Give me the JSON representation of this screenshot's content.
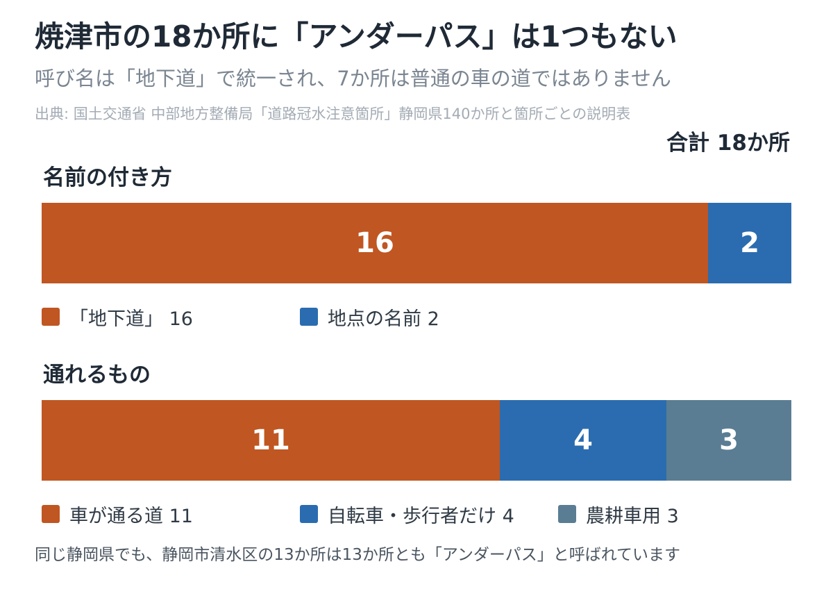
{
  "header": {
    "title": "焼津市の18か所に「アンダーパス」は1つもない",
    "subtitle": "呼び名は「地下道」で統一され、7か所は普通の車の道ではありません",
    "source": "出典: 国土交通省 中部地方整備局「道路冠水注意箇所」静岡県140か所と箇所ごとの説明表",
    "total": "合計 18か所"
  },
  "footnote": "同じ静岡県でも、静岡市清水区の13か所は13か所とも「アンダーパス」と呼ばれています",
  "colors": {
    "orange": "#c05621",
    "blue": "#2b6cb0",
    "slate": "#5a7d93"
  },
  "chart_data": [
    {
      "type": "bar",
      "orientation": "horizontal-stacked",
      "title": "名前の付き方",
      "total": 18,
      "segments": [
        {
          "label": "「地下道」 16",
          "value": 16,
          "display": "16",
          "color": "#c05621"
        },
        {
          "label": "地点の名前 2",
          "value": 2,
          "display": "2",
          "color": "#2b6cb0"
        }
      ]
    },
    {
      "type": "bar",
      "orientation": "horizontal-stacked",
      "title": "通れるもの",
      "total": 18,
      "segments": [
        {
          "label": "車が通る道 11",
          "value": 11,
          "display": "11",
          "color": "#c05621"
        },
        {
          "label": "自転車・歩行者だけ 4",
          "value": 4,
          "display": "4",
          "color": "#2b6cb0"
        },
        {
          "label": "農耕車用 3",
          "value": 3,
          "display": "3",
          "color": "#5a7d93"
        }
      ]
    }
  ]
}
